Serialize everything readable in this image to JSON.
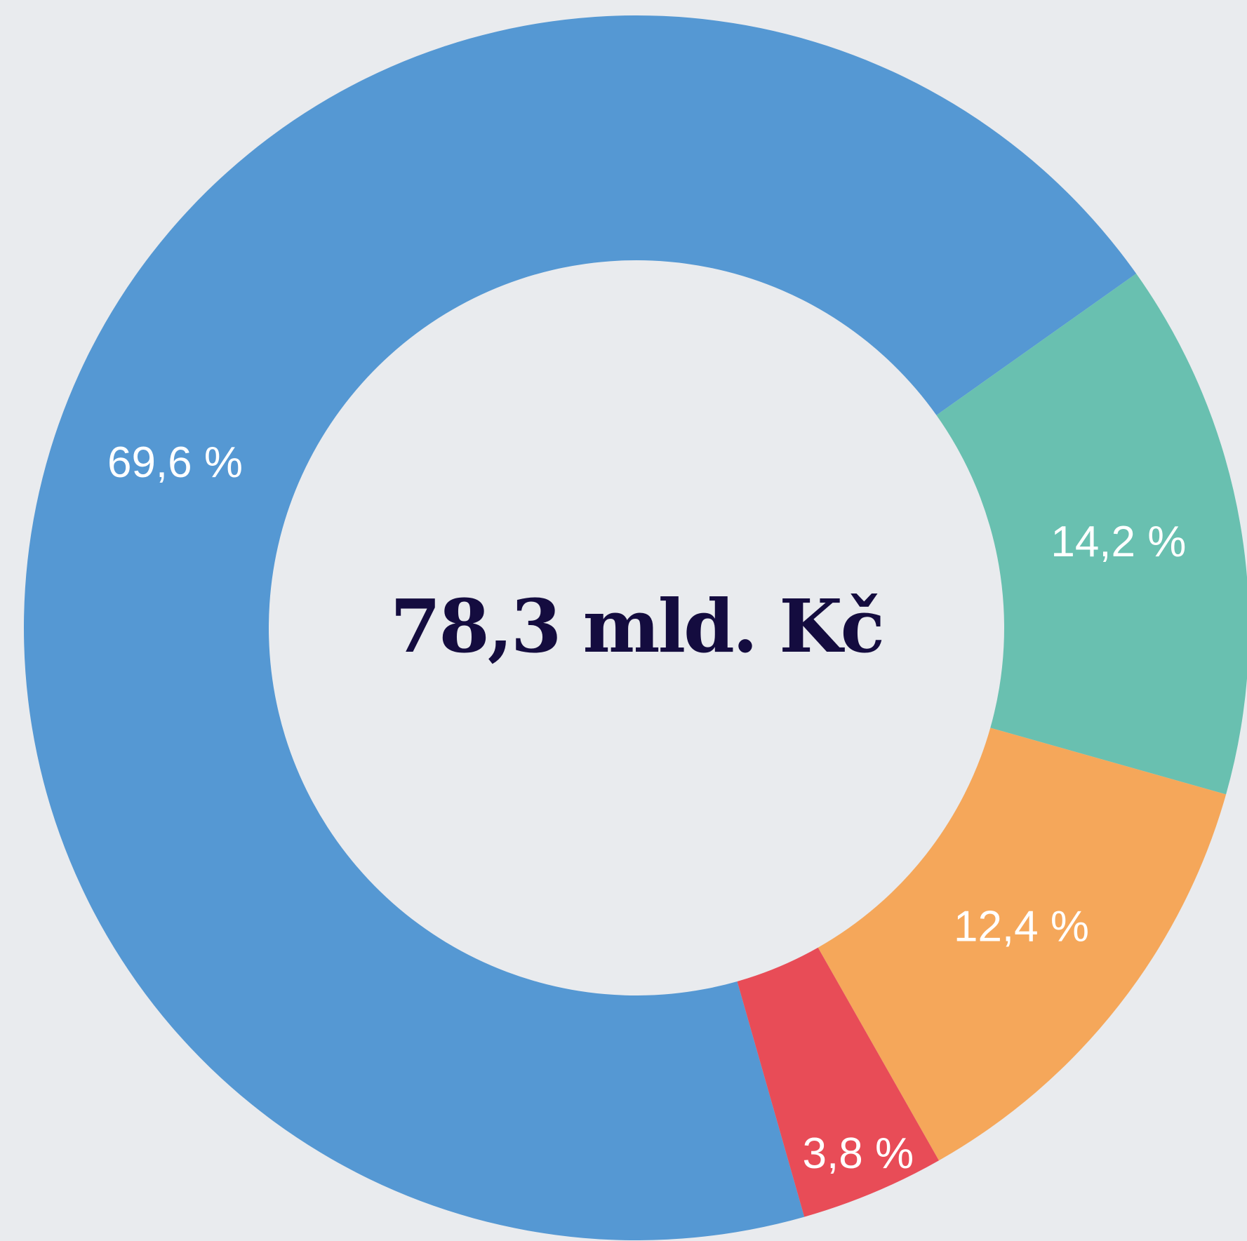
{
  "chart_data": {
    "type": "donut",
    "center_text": "78,3 mld. Kč",
    "values": [
      69.6,
      14.2,
      12.4,
      3.8
    ],
    "value_labels": [
      "69,6 %",
      "14,2 %",
      "12,4 %",
      "3,8 %"
    ],
    "colors": [
      "#5598d3",
      "#69c0b0",
      "#f5a75a",
      "#e84c57"
    ]
  }
}
